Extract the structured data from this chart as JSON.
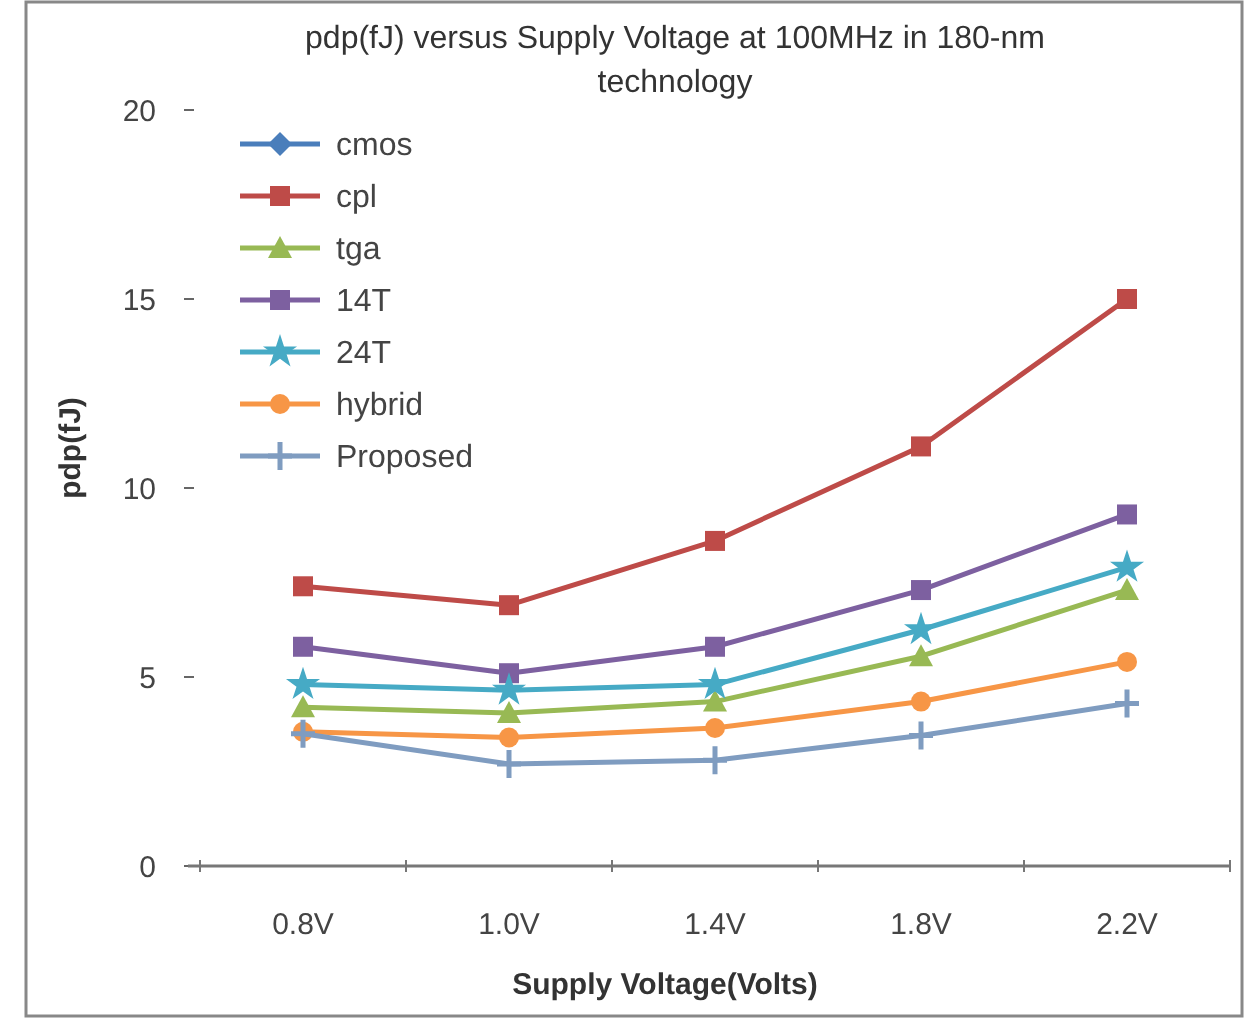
{
  "chart_data": {
    "type": "line",
    "title": "pdp(fJ) versus Supply Voltage at 100MHz in 180-nm technology",
    "xlabel": "Supply Voltage(Volts)",
    "ylabel": "pdp(fJ)",
    "categories": [
      "0.8V",
      "1.0V",
      "1.4V",
      "1.8V",
      "2.2V"
    ],
    "ylim": [
      0,
      20
    ],
    "yticks": [
      0,
      5,
      10,
      15,
      20
    ],
    "grid": false,
    "legend": "top left",
    "series": [
      {
        "name": "cmos",
        "color": "#4a7ebb",
        "marker": "diamond",
        "values": [
          null,
          null,
          null,
          null,
          null
        ]
      },
      {
        "name": "cpl",
        "color": "#be4b48",
        "marker": "square",
        "values": [
          7.4,
          6.9,
          8.6,
          11.1,
          15.0
        ]
      },
      {
        "name": "tga",
        "color": "#98b954",
        "marker": "triangle",
        "values": [
          4.2,
          4.05,
          4.35,
          5.55,
          7.3
        ]
      },
      {
        "name": "14T",
        "color": "#7d60a0",
        "marker": "square",
        "values": [
          5.8,
          5.1,
          5.8,
          7.3,
          9.3
        ]
      },
      {
        "name": "24T",
        "color": "#46aac5",
        "marker": "star",
        "values": [
          4.8,
          4.65,
          4.8,
          6.25,
          7.9
        ]
      },
      {
        "name": "hybrid",
        "color": "#f79646",
        "marker": "circle",
        "values": [
          3.55,
          3.4,
          3.65,
          4.35,
          5.4
        ]
      },
      {
        "name": "Proposed",
        "color": "#7f9cc0",
        "marker": "cross",
        "values": [
          3.5,
          2.7,
          2.8,
          3.45,
          4.3
        ]
      }
    ]
  }
}
